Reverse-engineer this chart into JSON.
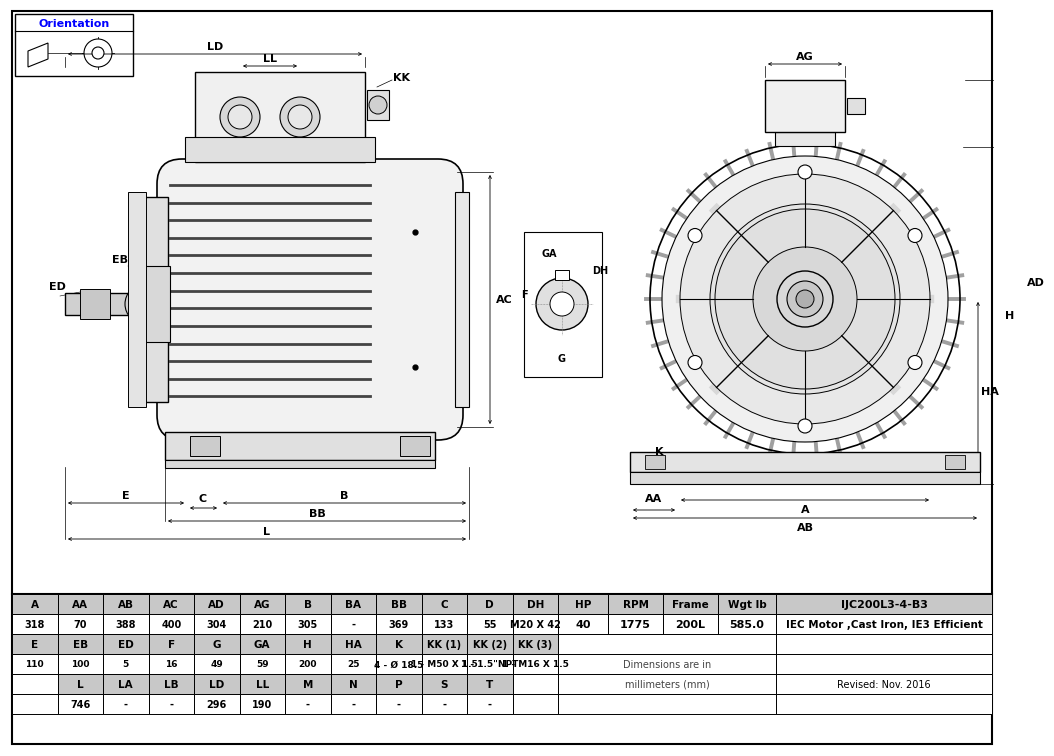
{
  "bg_color": "#ffffff",
  "title_text": "IJC200L3-4-B3",
  "subtitle": "IEC Motor ,Cast Iron, IE3 Efficient",
  "hp": "40",
  "rpm": "1775",
  "frame": "200L",
  "wgt": "585.0",
  "row1_headers": [
    "A",
    "AA",
    "AB",
    "AC",
    "AD",
    "AG",
    "B",
    "BA",
    "BB",
    "C",
    "D",
    "DH"
  ],
  "row1_vals": [
    "318",
    "70",
    "388",
    "400",
    "304",
    "210",
    "305",
    "-",
    "369",
    "133",
    "55",
    "M20 X 42"
  ],
  "row2_headers": [
    "E",
    "EB",
    "ED",
    "F",
    "G",
    "GA",
    "H",
    "HA",
    "K",
    "KK (1)",
    "KK (2)",
    "KK (3)"
  ],
  "row2_vals": [
    "110",
    "100",
    "5",
    "16",
    "49",
    "59",
    "200",
    "25",
    "4 - Ø 18.5",
    "1 - M50 X 1.5",
    "1 - 1.5\"NPT",
    "1 - M16 X 1.5"
  ],
  "row3_headers": [
    "",
    "L",
    "LA",
    "LB",
    "LD",
    "LL",
    "M",
    "N",
    "P",
    "S",
    "T",
    ""
  ],
  "row3_vals": [
    "",
    "746",
    "-",
    "-",
    "296",
    "190",
    "-",
    "-",
    "-",
    "-",
    "-",
    ""
  ],
  "note1": "Dimensions are in",
  "note2": "millimeters (mm)",
  "revised": "Revised: Nov. 2016",
  "orientation_label": "Orientation",
  "header_gray": "#c8c8c8",
  "table_white": "#ffffff"
}
